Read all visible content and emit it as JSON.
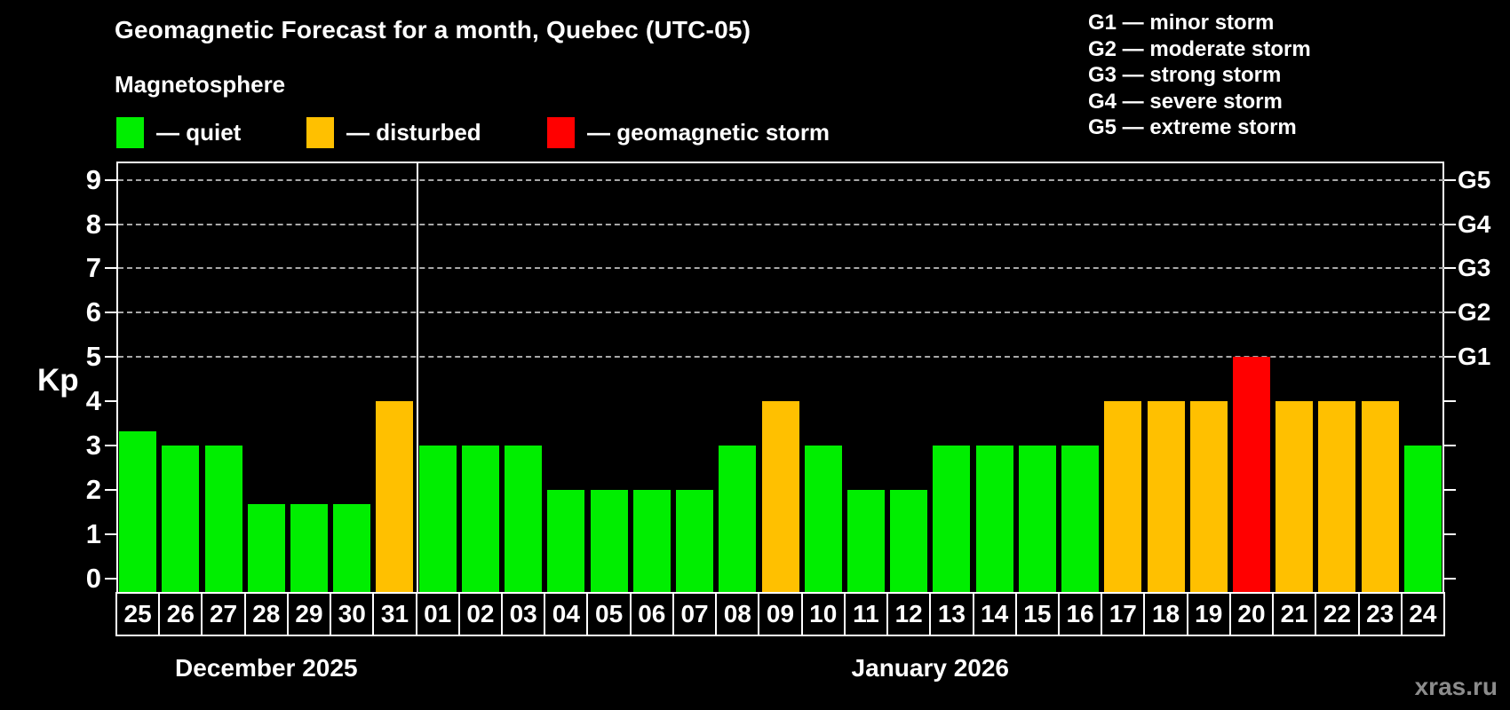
{
  "title": "Geomagnetic Forecast for a month, Quebec (UTC-05)",
  "subtitle": "Magnetosphere",
  "watermark": "xras.ru",
  "status_legend": [
    {
      "status": "quiet",
      "label": "— quiet"
    },
    {
      "status": "disturbed",
      "label": "— disturbed"
    },
    {
      "status": "storm",
      "label": "— geomagnetic storm"
    }
  ],
  "g_scale_legend": [
    "G1 — minor storm",
    "G2 — moderate storm",
    "G3 — strong storm",
    "G4 — severe storm",
    "G5 — extreme storm"
  ],
  "colors": {
    "quiet": "#00EE00",
    "disturbed": "#FFC000",
    "storm": "#FF0000",
    "background": "#000000",
    "text": "#FFFFFF",
    "gridline": "#A8A8A8",
    "watermark": "#8C8C8C"
  },
  "y_axis": {
    "label": "Kp",
    "ticks": [
      "0",
      "1",
      "2",
      "3",
      "4",
      "5",
      "6",
      "7",
      "8",
      "9"
    ]
  },
  "right_axis": {
    "labels": [
      "G1",
      "G2",
      "G3",
      "G4",
      "G5"
    ],
    "kp_positions": [
      5,
      6,
      7,
      8,
      9
    ]
  },
  "chart_data": {
    "type": "bar",
    "title": "Geomagnetic Forecast for a month, Quebec (UTC-05)",
    "xlabel": "",
    "ylabel": "Kp",
    "ylim": [
      0,
      9
    ],
    "grid": "dashed horizontal at Kp 5-9 (G1-G5)",
    "legend_position": "top",
    "months": [
      {
        "label": "December 2025",
        "days": [
          "25",
          "26",
          "27",
          "28",
          "29",
          "30",
          "31"
        ],
        "values": [
          3.33,
          3,
          3,
          1.67,
          1.67,
          1.67,
          4
        ],
        "statuses": [
          "quiet",
          "quiet",
          "quiet",
          "quiet",
          "quiet",
          "quiet",
          "disturbed"
        ]
      },
      {
        "label": "January 2026",
        "days": [
          "01",
          "02",
          "03",
          "04",
          "05",
          "06",
          "07",
          "08",
          "09",
          "10",
          "11",
          "12",
          "13",
          "14",
          "15",
          "16",
          "17",
          "18",
          "19",
          "20",
          "21",
          "22",
          "23",
          "24"
        ],
        "values": [
          3,
          3,
          3,
          2,
          2,
          2,
          2,
          3,
          4,
          3,
          2,
          2,
          3,
          3,
          3,
          3,
          4,
          4,
          4,
          5,
          4,
          4,
          4,
          3
        ],
        "statuses": [
          "quiet",
          "quiet",
          "quiet",
          "quiet",
          "quiet",
          "quiet",
          "quiet",
          "quiet",
          "disturbed",
          "quiet",
          "quiet",
          "quiet",
          "quiet",
          "quiet",
          "quiet",
          "quiet",
          "disturbed",
          "disturbed",
          "disturbed",
          "storm",
          "disturbed",
          "disturbed",
          "disturbed",
          "quiet"
        ]
      }
    ]
  }
}
